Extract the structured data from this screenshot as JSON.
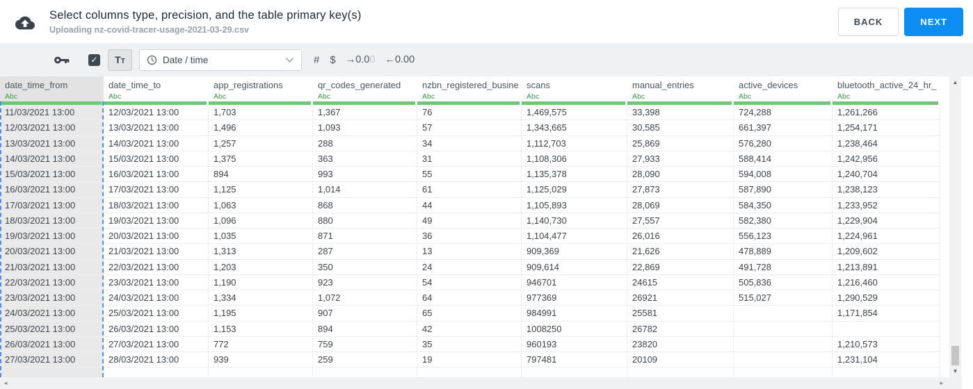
{
  "header": {
    "title": "Select columns type, precision, and the table primary key(s)",
    "subtitle": "Uploading nz-covid-tracer-usage-2021-03-29.csv",
    "back_label": "BACK",
    "next_label": "NEXT"
  },
  "toolbar": {
    "primary_key_icon": "key-icon",
    "checkbox_checked": true,
    "check_glyph": "✓",
    "text_type_label": "Tt",
    "type_dropdown": {
      "value": "Date / time",
      "icon": "clock-icon"
    },
    "number_label": "#",
    "currency_label": "$",
    "decimal_increase": {
      "main": "→0.0",
      "faded": "0"
    },
    "decimal_decrease": "←0.00"
  },
  "colors": {
    "accent_blue": "#0d8cf2",
    "type_green": "#2f9e44",
    "header_underline_green": "#74c476",
    "selection_dash_blue": "#4b8ff2"
  },
  "table": {
    "columns": [
      {
        "name": "date_time_from",
        "type": "Abc",
        "selected": true
      },
      {
        "name": "date_time_to",
        "type": "Abc",
        "selected": false
      },
      {
        "name": "app_registrations",
        "type": "Abc",
        "selected": false
      },
      {
        "name": "qr_codes_generated",
        "type": "Abc",
        "selected": false
      },
      {
        "name": "nzbn_registered_busine",
        "type": "Abc",
        "selected": false
      },
      {
        "name": "scans",
        "type": "Abc",
        "selected": false
      },
      {
        "name": "manual_entries",
        "type": "Abc",
        "selected": false
      },
      {
        "name": "active_devices",
        "type": "Abc",
        "selected": false
      },
      {
        "name": "bluetooth_active_24_hr_",
        "type": "Abc",
        "selected": false
      }
    ],
    "rows": [
      [
        "11/03/2021 13:00",
        "12/03/2021 13:00",
        "1,703",
        "1,367",
        "76",
        "1,469,575",
        "33,398",
        "724,288",
        "1,261,266"
      ],
      [
        "12/03/2021 13:00",
        "13/03/2021 13:00",
        "1,496",
        "1,093",
        "57",
        "1,343,665",
        "30,585",
        "661,397",
        "1,254,171"
      ],
      [
        "13/03/2021 13:00",
        "14/03/2021 13:00",
        "1,257",
        "288",
        "34",
        "1,112,703",
        "25,869",
        "576,280",
        "1,238,464"
      ],
      [
        "14/03/2021 13:00",
        "15/03/2021 13:00",
        "1,375",
        "363",
        "31",
        "1,108,306",
        "27,933",
        "588,414",
        "1,242,956"
      ],
      [
        "15/03/2021 13:00",
        "16/03/2021 13:00",
        "894",
        "993",
        "55",
        "1,135,378",
        "28,090",
        "594,008",
        "1,240,704"
      ],
      [
        "16/03/2021 13:00",
        "17/03/2021 13:00",
        "1,125",
        "1,014",
        "61",
        "1,125,029",
        "27,873",
        "587,890",
        "1,238,123"
      ],
      [
        "17/03/2021 13:00",
        "18/03/2021 13:00",
        "1,063",
        "868",
        "44",
        "1,105,893",
        "28,069",
        "584,350",
        "1,233,952"
      ],
      [
        "18/03/2021 13:00",
        "19/03/2021 13:00",
        "1,096",
        "880",
        "49",
        "1,140,730",
        "27,557",
        "582,380",
        "1,229,904"
      ],
      [
        "19/03/2021 13:00",
        "20/03/2021 13:00",
        "1,035",
        "871",
        "36",
        "1,104,477",
        "26,016",
        "556,123",
        "1,224,961"
      ],
      [
        "20/03/2021 13:00",
        "21/03/2021 13:00",
        "1,313",
        "287",
        "13",
        "909,369",
        "21,626",
        "478,889",
        "1,209,602"
      ],
      [
        "21/03/2021 13:00",
        "22/03/2021 13:00",
        "1,203",
        "350",
        "24",
        "909,614",
        "22,869",
        "491,728",
        "1,213,891"
      ],
      [
        "22/03/2021 13:00",
        "23/03/2021 13:00",
        "1,190",
        "923",
        "54",
        "946701",
        "24615",
        "505,836",
        "1,216,460"
      ],
      [
        "23/03/2021 13:00",
        "24/03/2021 13:00",
        "1,334",
        "1,072",
        "64",
        "977369",
        "26921",
        "515,027",
        "1,290,529"
      ],
      [
        "24/03/2021 13:00",
        "25/03/2021 13:00",
        "1,195",
        "907",
        "65",
        "984991",
        "25581",
        "",
        "1,171,854"
      ],
      [
        "25/03/2021 13:00",
        "26/03/2021 13:00",
        "1,153",
        "894",
        "42",
        "1008250",
        "26782",
        "",
        ""
      ],
      [
        "26/03/2021 13:00",
        "27/03/2021 13:00",
        "772",
        "759",
        "35",
        "960193",
        "23820",
        "",
        "1,210,573"
      ],
      [
        "27/03/2021 13:00",
        "28/03/2021 13:00",
        "939",
        "259",
        "19",
        "797481",
        "20109",
        "",
        "1,231,104"
      ]
    ]
  },
  "scrollbar": {
    "up": "▲",
    "down": "▼",
    "left": "◄",
    "right": "►"
  }
}
